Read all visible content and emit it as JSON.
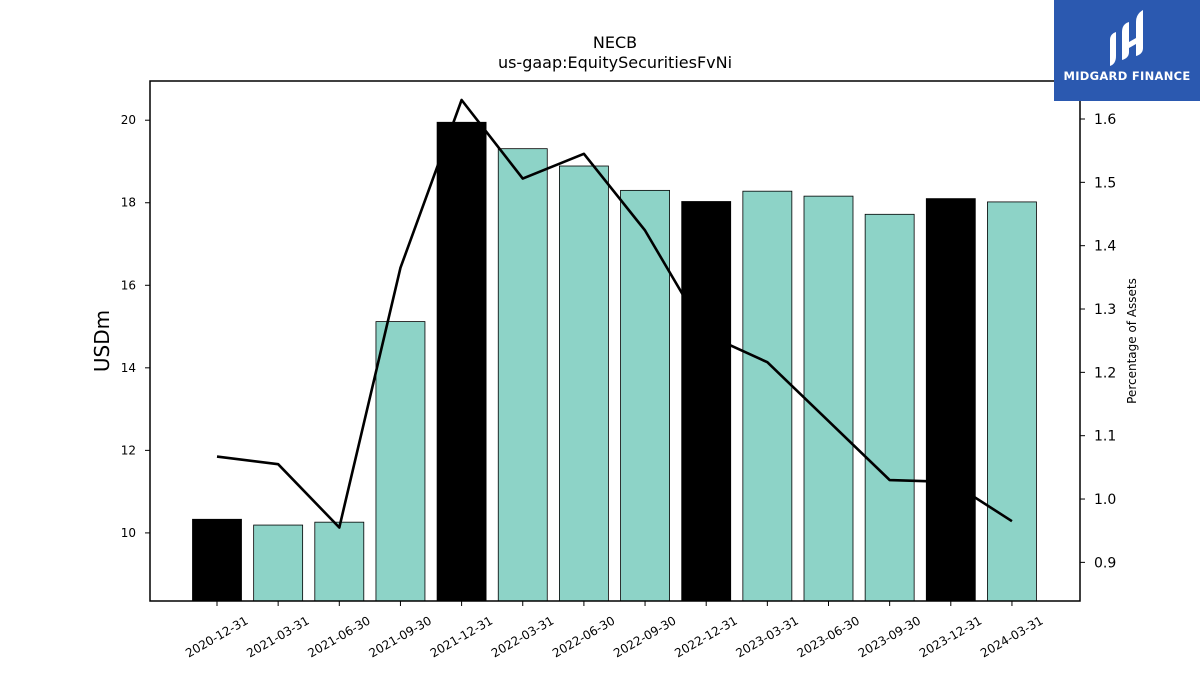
{
  "chart_data": {
    "type": "bar",
    "title": "NECB",
    "subtitle": "us-gaap:EquitySecuritiesFvNi",
    "ylabel": "USDm",
    "ylabel_right": "Percentage of Assets",
    "categories": [
      "2020-12-31",
      "2021-03-31",
      "2021-06-30",
      "2021-09-30",
      "2021-12-31",
      "2022-03-31",
      "2022-06-30",
      "2022-09-30",
      "2022-12-31",
      "2023-03-31",
      "2023-06-30",
      "2023-09-30",
      "2023-12-31",
      "2024-03-31"
    ],
    "series": [
      {
        "type": "bar",
        "axis": "left",
        "values": [
          10.33,
          10.19,
          10.26,
          15.12,
          19.95,
          19.31,
          18.89,
          18.3,
          18.03,
          18.28,
          18.16,
          17.72,
          18.1,
          18.02
        ]
      },
      {
        "type": "line",
        "axis": "right",
        "values": [
          1.067,
          1.055,
          0.955,
          1.365,
          1.63,
          1.506,
          1.545,
          1.424,
          1.26,
          1.216,
          1.123,
          1.03,
          1.027,
          0.965
        ]
      }
    ],
    "bar_colors": [
      "#000000",
      "#8dd3c7",
      "#8dd3c7",
      "#8dd3c7",
      "#000000",
      "#8dd3c7",
      "#8dd3c7",
      "#8dd3c7",
      "#000000",
      "#8dd3c7",
      "#8dd3c7",
      "#8dd3c7",
      "#000000",
      "#8dd3c7"
    ],
    "line_color": "#000000",
    "ylim": [
      8.35,
      20.95
    ],
    "yticks": [
      10,
      12,
      14,
      16,
      18,
      20
    ],
    "ylim_right": [
      0.839,
      1.66
    ],
    "yticks_right": [
      0.9,
      1.0,
      1.1,
      1.2,
      1.3,
      1.4,
      1.5,
      1.6
    ],
    "grid": false
  },
  "logo": {
    "text": "MIDGARD FINANCE",
    "background": "#2b59b0"
  }
}
